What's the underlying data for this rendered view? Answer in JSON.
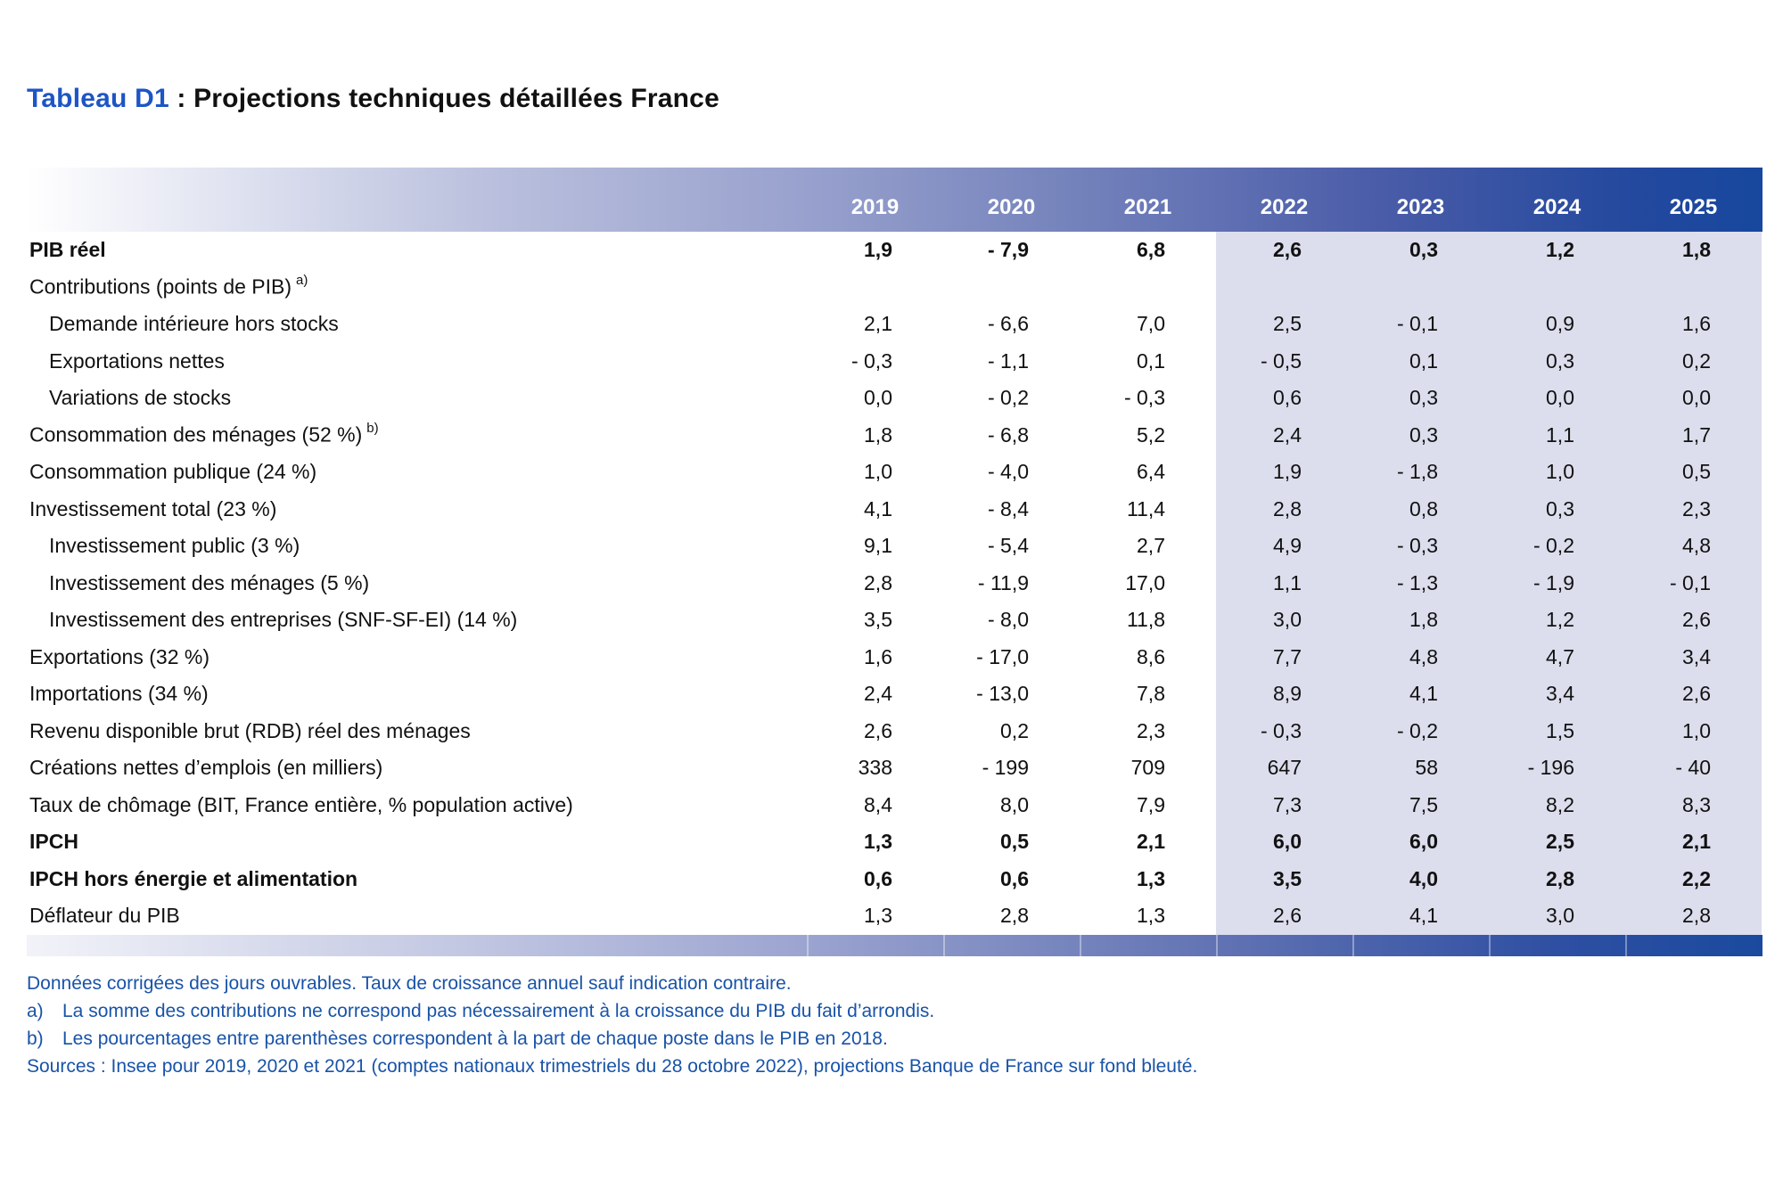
{
  "title": {
    "prefix": "Tableau D1",
    "rest": " : Projections techniques détaillées France"
  },
  "chart_data": {
    "type": "table",
    "title": "Tableau D1 : Projections techniques détaillées France",
    "columns": [
      "2019",
      "2020",
      "2021",
      "2022",
      "2023",
      "2024",
      "2025"
    ],
    "projection_columns": [
      "2022",
      "2023",
      "2024",
      "2025"
    ],
    "rows": [
      {
        "label": "PIB réel",
        "bold": true,
        "indent": 0,
        "sup": "",
        "values": [
          "1,9",
          "- 7,9",
          "6,8",
          "2,6",
          "0,3",
          "1,2",
          "1,8"
        ]
      },
      {
        "label": "Contributions (points de PIB)",
        "bold": false,
        "indent": 0,
        "sup": "a)",
        "values": [
          "",
          "",
          "",
          "",
          "",
          "",
          ""
        ]
      },
      {
        "label": "Demande intérieure hors stocks",
        "bold": false,
        "indent": 1,
        "sup": "",
        "values": [
          "2,1",
          "- 6,6",
          "7,0",
          "2,5",
          "- 0,1",
          "0,9",
          "1,6"
        ]
      },
      {
        "label": "Exportations nettes",
        "bold": false,
        "indent": 1,
        "sup": "",
        "values": [
          "- 0,3",
          "- 1,1",
          "0,1",
          "- 0,5",
          "0,1",
          "0,3",
          "0,2"
        ]
      },
      {
        "label": "Variations de stocks",
        "bold": false,
        "indent": 1,
        "sup": "",
        "values": [
          "0,0",
          "- 0,2",
          "- 0,3",
          "0,6",
          "0,3",
          "0,0",
          "0,0"
        ]
      },
      {
        "label": "Consommation des ménages (52 %)",
        "bold": false,
        "indent": 0,
        "sup": "b)",
        "values": [
          "1,8",
          "- 6,8",
          "5,2",
          "2,4",
          "0,3",
          "1,1",
          "1,7"
        ]
      },
      {
        "label": "Consommation publique (24 %)",
        "bold": false,
        "indent": 0,
        "sup": "",
        "values": [
          "1,0",
          "- 4,0",
          "6,4",
          "1,9",
          "- 1,8",
          "1,0",
          "0,5"
        ]
      },
      {
        "label": "Investissement total (23 %)",
        "bold": false,
        "indent": 0,
        "sup": "",
        "values": [
          "4,1",
          "- 8,4",
          "11,4",
          "2,8",
          "0,8",
          "0,3",
          "2,3"
        ]
      },
      {
        "label": "Investissement public (3 %)",
        "bold": false,
        "indent": 1,
        "sup": "",
        "values": [
          "9,1",
          "- 5,4",
          "2,7",
          "4,9",
          "- 0,3",
          "- 0,2",
          "4,8"
        ]
      },
      {
        "label": "Investissement des ménages (5 %)",
        "bold": false,
        "indent": 1,
        "sup": "",
        "values": [
          "2,8",
          "- 11,9",
          "17,0",
          "1,1",
          "- 1,3",
          "- 1,9",
          "- 0,1"
        ]
      },
      {
        "label": "Investissement des entreprises (SNF-SF-EI) (14 %)",
        "bold": false,
        "indent": 1,
        "sup": "",
        "values": [
          "3,5",
          "- 8,0",
          "11,8",
          "3,0",
          "1,8",
          "1,2",
          "2,6"
        ]
      },
      {
        "label": "Exportations (32 %)",
        "bold": false,
        "indent": 0,
        "sup": "",
        "values": [
          "1,6",
          "- 17,0",
          "8,6",
          "7,7",
          "4,8",
          "4,7",
          "3,4"
        ]
      },
      {
        "label": "Importations (34 %)",
        "bold": false,
        "indent": 0,
        "sup": "",
        "values": [
          "2,4",
          "- 13,0",
          "7,8",
          "8,9",
          "4,1",
          "3,4",
          "2,6"
        ]
      },
      {
        "label": "Revenu disponible brut (RDB) réel des ménages",
        "bold": false,
        "indent": 0,
        "sup": "",
        "values": [
          "2,6",
          "0,2",
          "2,3",
          "- 0,3",
          "- 0,2",
          "1,5",
          "1,0"
        ]
      },
      {
        "label": "Créations nettes d’emplois (en milliers)",
        "bold": false,
        "indent": 0,
        "sup": "",
        "values": [
          "338",
          "- 199",
          "709",
          "647",
          "58",
          "- 196",
          "- 40"
        ]
      },
      {
        "label": "Taux de chômage (BIT, France entière, % population active)",
        "bold": false,
        "indent": 0,
        "sup": "",
        "values": [
          "8,4",
          "8,0",
          "7,9",
          "7,3",
          "7,5",
          "8,2",
          "8,3"
        ]
      },
      {
        "label": "IPCH",
        "bold": true,
        "indent": 0,
        "sup": "",
        "values": [
          "1,3",
          "0,5",
          "2,1",
          "6,0",
          "6,0",
          "2,5",
          "2,1"
        ]
      },
      {
        "label": "IPCH hors énergie et alimentation",
        "bold": true,
        "indent": 0,
        "sup": "",
        "values": [
          "0,6",
          "0,6",
          "1,3",
          "3,5",
          "4,0",
          "2,8",
          "2,2"
        ]
      },
      {
        "label": "Déflateur du PIB",
        "bold": false,
        "indent": 0,
        "sup": "",
        "values": [
          "1,3",
          "2,8",
          "1,3",
          "2,6",
          "4,1",
          "3,0",
          "2,8"
        ]
      }
    ]
  },
  "footnotes": [
    {
      "marker": "",
      "text": "Données corrigées des jours ouvrables. Taux de croissance annuel sauf indication contraire."
    },
    {
      "marker": "a)",
      "text": "La somme des contributions ne correspond pas nécessairement à la croissance du PIB du fait d’arrondis."
    },
    {
      "marker": "b)",
      "text": "Les pourcentages entre parenthèses correspondent à la part de chaque poste dans le PIB en 2018."
    },
    {
      "marker": "",
      "text": "Sources : Insee pour 2019, 2020 et 2021 (comptes nationaux trimestriels du 28 octobre 2022), projections Banque de France sur fond bleuté."
    }
  ],
  "colors": {
    "title_blue": "#1d55c6",
    "footnote_blue": "#1853a8",
    "header_gradient_dark": "#17479e",
    "projection_background": "#dcdeed"
  }
}
